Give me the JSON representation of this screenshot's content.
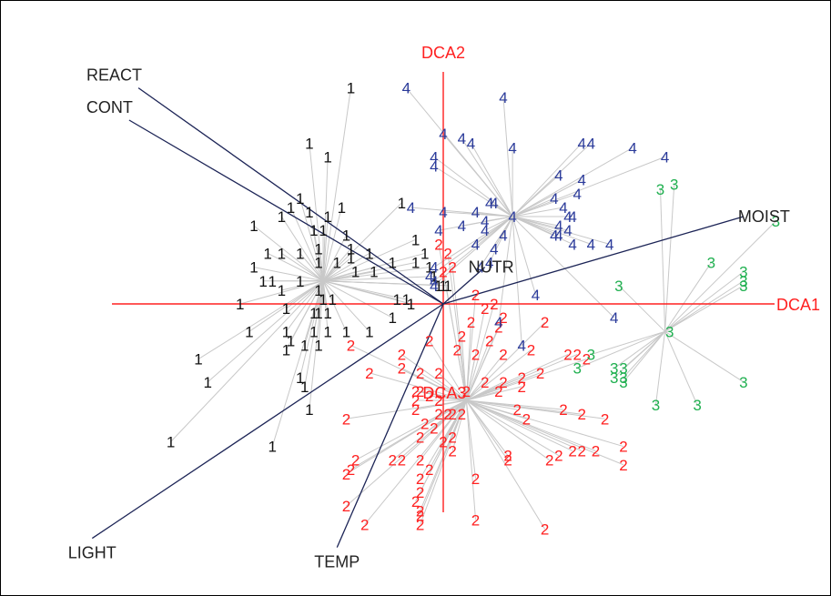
{
  "chart_data": {
    "type": "scatter",
    "title": "",
    "axes": [
      {
        "name": "DCA1",
        "color": "#ff2020"
      },
      {
        "name": "DCA2",
        "color": "#ff2020"
      }
    ],
    "xlim": [
      -3.6,
      3.6
    ],
    "ylim": [
      -2.8,
      2.4
    ],
    "grid": false,
    "center_label": {
      "text": "DCA3",
      "x": 0.25,
      "y": -1.05
    },
    "vectors": [
      {
        "name": "REACT",
        "x": -3.3,
        "y": 2.35
      },
      {
        "name": "CONT",
        "x": -3.4,
        "y": 2.0
      },
      {
        "name": "MOIST",
        "x": 3.25,
        "y": 0.95
      },
      {
        "name": "NUTR",
        "x": 0.45,
        "y": 0.4
      },
      {
        "name": "LIGHT",
        "x": -3.8,
        "y": -2.55
      },
      {
        "name": "TEMP",
        "x": -1.15,
        "y": -2.65
      }
    ],
    "series": [
      {
        "name": "1",
        "color": "#111111",
        "centroid": [
          -1.3,
          0.25
        ],
        "points": [
          [
            -1.0,
            2.35
          ],
          [
            -1.45,
            1.75
          ],
          [
            -1.25,
            1.6
          ],
          [
            -1.55,
            1.15
          ],
          [
            -1.65,
            1.05
          ],
          [
            -1.45,
            1.0
          ],
          [
            -1.75,
            0.95
          ],
          [
            -1.25,
            0.95
          ],
          [
            -1.1,
            1.05
          ],
          [
            -0.45,
            1.1
          ],
          [
            -1.4,
            0.8
          ],
          [
            -1.3,
            0.8
          ],
          [
            -1.05,
            0.75
          ],
          [
            -2.05,
            0.85
          ],
          [
            -1.35,
            0.6
          ],
          [
            -1.0,
            0.6
          ],
          [
            -1.0,
            0.5
          ],
          [
            -0.8,
            0.55
          ],
          [
            -0.3,
            0.7
          ],
          [
            -1.9,
            0.55
          ],
          [
            -1.75,
            0.55
          ],
          [
            -1.55,
            0.55
          ],
          [
            -1.35,
            0.45
          ],
          [
            -1.15,
            0.45
          ],
          [
            -0.95,
            0.35
          ],
          [
            -0.75,
            0.35
          ],
          [
            -0.55,
            0.45
          ],
          [
            -0.3,
            0.45
          ],
          [
            -2.05,
            0.4
          ],
          [
            -1.95,
            0.25
          ],
          [
            -1.85,
            0.25
          ],
          [
            -1.55,
            0.25
          ],
          [
            -1.75,
            0.15
          ],
          [
            -1.35,
            0.15
          ],
          [
            -1.3,
            0.05
          ],
          [
            -1.2,
            0.05
          ],
          [
            -0.5,
            0.05
          ],
          [
            -0.4,
            0.05
          ],
          [
            -0.35,
            0.0
          ],
          [
            -2.2,
            0.0
          ],
          [
            -1.7,
            -0.05
          ],
          [
            -1.4,
            -0.1
          ],
          [
            -1.35,
            -0.1
          ],
          [
            -1.25,
            -0.1
          ],
          [
            -0.55,
            -0.15
          ],
          [
            -2.1,
            -0.3
          ],
          [
            -1.7,
            -0.3
          ],
          [
            -1.65,
            -0.4
          ],
          [
            -1.4,
            -0.3
          ],
          [
            -1.25,
            -0.3
          ],
          [
            -1.05,
            -0.3
          ],
          [
            -0.8,
            -0.3
          ],
          [
            -1.7,
            -0.5
          ],
          [
            -1.5,
            -0.45
          ],
          [
            -1.35,
            -0.45
          ],
          [
            -2.65,
            -0.6
          ],
          [
            -2.55,
            -0.85
          ],
          [
            -1.55,
            -0.8
          ],
          [
            -1.5,
            -0.9
          ],
          [
            -1.45,
            -1.15
          ],
          [
            -2.95,
            -1.5
          ],
          [
            -1.85,
            -1.55
          ],
          [
            -0.2,
            0.55
          ],
          [
            -0.15,
            0.4
          ],
          [
            -0.1,
            0.3
          ],
          [
            -0.05,
            0.2
          ],
          [
            0.0,
            0.2
          ],
          [
            0.05,
            0.2
          ]
        ]
      },
      {
        "name": "2",
        "color": "#ff2020",
        "centroid": [
          0.25,
          -1.05
        ],
        "points": [
          [
            -0.05,
            0.65
          ],
          [
            0.05,
            0.55
          ],
          [
            0.0,
            0.35
          ],
          [
            0.1,
            0.4
          ],
          [
            0.35,
            0.1
          ],
          [
            0.45,
            -0.05
          ],
          [
            0.55,
            0.0
          ],
          [
            0.65,
            -0.15
          ],
          [
            1.1,
            -0.2
          ],
          [
            0.3,
            -0.2
          ],
          [
            0.6,
            -0.25
          ],
          [
            0.5,
            -0.4
          ],
          [
            0.2,
            -0.35
          ],
          [
            0.15,
            -0.5
          ],
          [
            -1.0,
            -0.45
          ],
          [
            -0.45,
            -0.55
          ],
          [
            -0.15,
            -0.4
          ],
          [
            -0.05,
            -0.75
          ],
          [
            0.35,
            -0.55
          ],
          [
            0.65,
            -0.55
          ],
          [
            0.95,
            -0.5
          ],
          [
            1.35,
            -0.55
          ],
          [
            1.45,
            -0.55
          ],
          [
            1.55,
            -0.6
          ],
          [
            1.05,
            -0.75
          ],
          [
            0.85,
            -0.8
          ],
          [
            0.65,
            -0.85
          ],
          [
            -0.45,
            -0.7
          ],
          [
            -0.25,
            -0.75
          ],
          [
            -0.8,
            -0.75
          ],
          [
            0.45,
            -0.85
          ],
          [
            0.6,
            -0.95
          ],
          [
            0.85,
            -0.9
          ],
          [
            -0.25,
            -0.95
          ],
          [
            -0.3,
            -0.95
          ],
          [
            -0.3,
            -1.05
          ],
          [
            -0.15,
            -1.0
          ],
          [
            -0.05,
            -1.05
          ],
          [
            0.25,
            -0.95
          ],
          [
            -0.3,
            -1.15
          ],
          [
            -0.05,
            -1.2
          ],
          [
            0.05,
            -1.2
          ],
          [
            0.1,
            -1.2
          ],
          [
            0.2,
            -1.2
          ],
          [
            0.8,
            -1.15
          ],
          [
            1.3,
            -1.15
          ],
          [
            1.5,
            -1.2
          ],
          [
            1.75,
            -1.25
          ],
          [
            0.9,
            -1.25
          ],
          [
            -1.05,
            -1.25
          ],
          [
            -0.2,
            -1.3
          ],
          [
            -0.1,
            -1.35
          ],
          [
            -0.25,
            -1.45
          ],
          [
            0.0,
            -1.5
          ],
          [
            0.1,
            -1.45
          ],
          [
            0.1,
            -1.6
          ],
          [
            1.95,
            -1.55
          ],
          [
            1.4,
            -1.6
          ],
          [
            1.5,
            -1.6
          ],
          [
            1.65,
            -1.6
          ],
          [
            1.95,
            -1.75
          ],
          [
            1.25,
            -1.65
          ],
          [
            0.7,
            -1.65
          ],
          [
            0.7,
            -1.7
          ],
          [
            -0.95,
            -1.7
          ],
          [
            -0.55,
            -1.7
          ],
          [
            -0.45,
            -1.7
          ],
          [
            -0.25,
            -1.7
          ],
          [
            -0.15,
            -1.8
          ],
          [
            -0.25,
            -1.9
          ],
          [
            -1.0,
            -1.8
          ],
          [
            -1.05,
            -1.85
          ],
          [
            0.35,
            -1.9
          ],
          [
            1.15,
            -1.7
          ],
          [
            -0.25,
            -2.05
          ],
          [
            -0.3,
            -2.15
          ],
          [
            -0.25,
            -2.25
          ],
          [
            -0.25,
            -2.3
          ],
          [
            -1.05,
            -2.2
          ],
          [
            -0.85,
            -2.4
          ],
          [
            0.35,
            -2.35
          ],
          [
            1.1,
            -2.45
          ],
          [
            -0.25,
            -2.4
          ]
        ]
      },
      {
        "name": "3",
        "color": "#20b050",
        "centroid": [
          2.4,
          -0.3
        ],
        "points": [
          [
            2.35,
            1.25
          ],
          [
            2.5,
            1.3
          ],
          [
            3.6,
            0.9
          ],
          [
            2.9,
            0.45
          ],
          [
            3.25,
            0.35
          ],
          [
            3.25,
            0.25
          ],
          [
            3.25,
            0.2
          ],
          [
            1.9,
            0.2
          ],
          [
            2.45,
            -0.3
          ],
          [
            1.6,
            -0.55
          ],
          [
            1.45,
            -0.7
          ],
          [
            1.85,
            -0.7
          ],
          [
            1.95,
            -0.7
          ],
          [
            1.85,
            -0.8
          ],
          [
            1.95,
            -0.8
          ],
          [
            1.95,
            -0.85
          ],
          [
            3.25,
            -0.85
          ],
          [
            2.3,
            -1.1
          ],
          [
            2.75,
            -1.1
          ]
        ]
      },
      {
        "name": "4",
        "color": "#2a3a9a",
        "centroid": [
          0.75,
          0.95
        ],
        "points": [
          [
            -0.4,
            2.35
          ],
          [
            0.65,
            2.25
          ],
          [
            0.0,
            1.85
          ],
          [
            0.2,
            1.8
          ],
          [
            0.3,
            1.75
          ],
          [
            0.75,
            1.7
          ],
          [
            -0.1,
            1.6
          ],
          [
            -0.1,
            1.5
          ],
          [
            1.5,
            1.75
          ],
          [
            1.6,
            1.75
          ],
          [
            2.05,
            1.7
          ],
          [
            2.4,
            1.6
          ],
          [
            1.25,
            1.4
          ],
          [
            1.5,
            1.35
          ],
          [
            0.5,
            1.1
          ],
          [
            0.55,
            1.1
          ],
          [
            1.2,
            1.15
          ],
          [
            1.45,
            1.2
          ],
          [
            -0.35,
            1.05
          ],
          [
            0.0,
            1.0
          ],
          [
            0.35,
            1.0
          ],
          [
            0.45,
            0.9
          ],
          [
            1.3,
            1.05
          ],
          [
            1.35,
            0.95
          ],
          [
            1.4,
            0.95
          ],
          [
            0.2,
            0.85
          ],
          [
            0.45,
            0.8
          ],
          [
            0.75,
            0.95
          ],
          [
            -0.05,
            0.8
          ],
          [
            1.25,
            0.85
          ],
          [
            1.35,
            0.8
          ],
          [
            0.65,
            0.75
          ],
          [
            1.2,
            0.75
          ],
          [
            0.35,
            0.65
          ],
          [
            1.25,
            0.75
          ],
          [
            1.4,
            0.65
          ],
          [
            1.6,
            0.65
          ],
          [
            1.8,
            0.65
          ],
          [
            0.55,
            0.6
          ],
          [
            0.5,
            0.45
          ],
          [
            0.4,
            0.4
          ],
          [
            -0.1,
            0.4
          ],
          [
            -0.15,
            0.3
          ],
          [
            -0.1,
            0.25
          ],
          [
            -0.1,
            0.2
          ],
          [
            1.0,
            0.1
          ],
          [
            0.6,
            -0.2
          ],
          [
            1.85,
            -0.15
          ],
          [
            0.85,
            -0.45
          ]
        ]
      }
    ]
  }
}
